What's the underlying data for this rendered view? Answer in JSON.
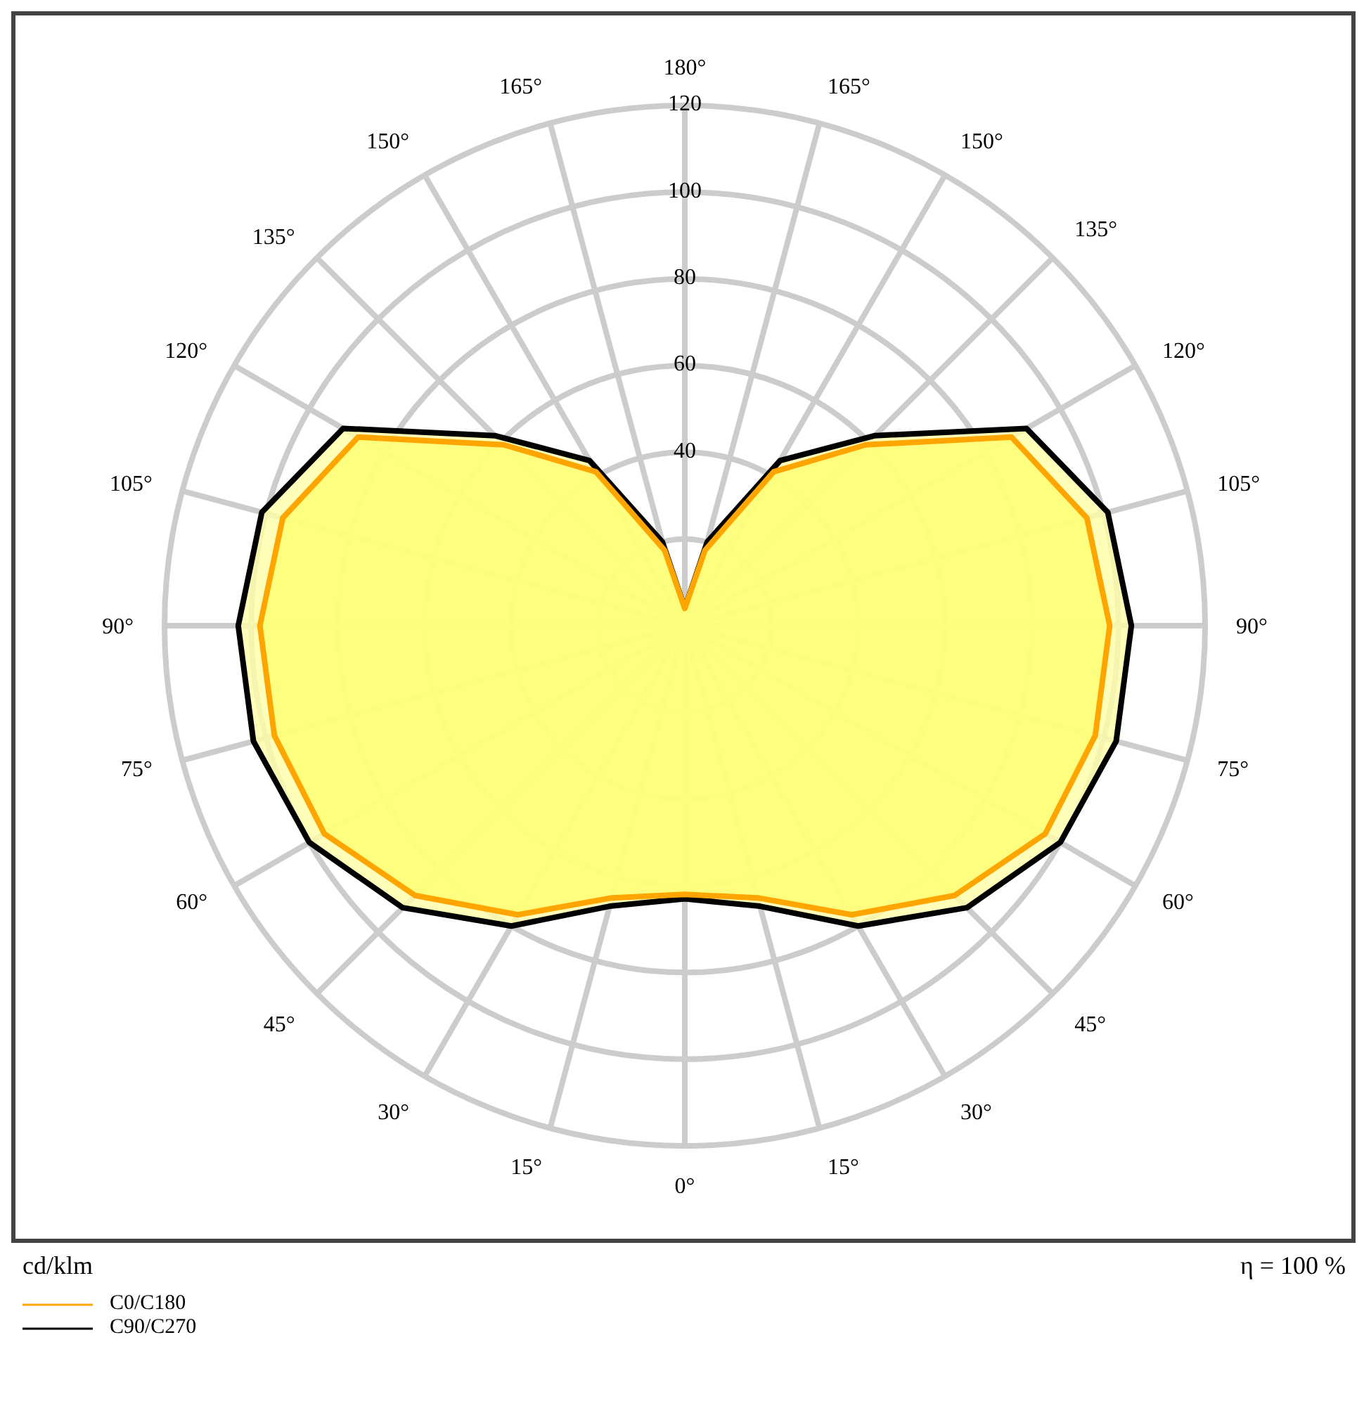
{
  "chart_data": {
    "type": "radar",
    "ylabel": "cd/klm",
    "annotations": [
      "η = 100 %"
    ],
    "categories": [
      "180°",
      "165°",
      "150°",
      "135°",
      "120°",
      "105°",
      "90°",
      "75°",
      "60°",
      "45°",
      "30°",
      "15°",
      "0°",
      "15°",
      "30°",
      "45°",
      "60°",
      "75°",
      "90°",
      "105°",
      "120°",
      "135°",
      "150°",
      "165°"
    ],
    "series": [
      {
        "name": "C90/C270",
        "color": "#000000",
        "values": [
          4,
          20,
          44,
          62,
          91,
          101,
          103,
          103,
          100,
          92,
          80,
          67,
          63,
          67,
          80,
          92,
          100,
          103,
          103,
          101,
          91,
          62,
          44,
          20
        ]
      },
      {
        "name": "C0/C180",
        "color": "#ffa500",
        "values": [
          4,
          18,
          41,
          59,
          87,
          96,
          98,
          98,
          96,
          88,
          77,
          65,
          62,
          65,
          77,
          88,
          96,
          98,
          98,
          96,
          87,
          59,
          41,
          18
        ]
      }
    ],
    "ylim": [
      0,
      120
    ],
    "yticks": [
      40,
      60,
      80,
      100,
      120
    ],
    "grid": true,
    "legend": "bottom left"
  }
}
